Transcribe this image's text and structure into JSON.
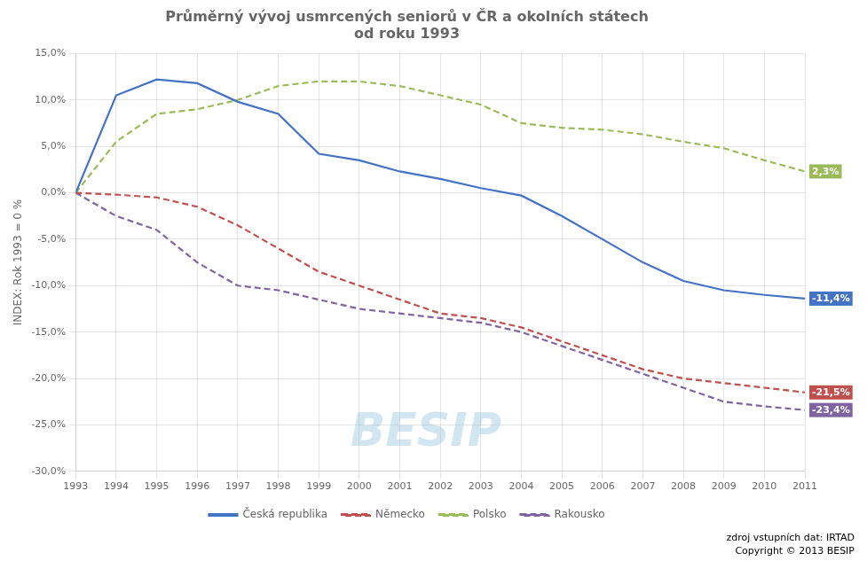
{
  "chart_data": {
    "type": "line",
    "title": "Průměrný vývoj usmrcených seniorů v ČR a okolních státech\nod roku 1993",
    "y_label": "INDEX: Rok 1993 = 0 %",
    "x": [
      1993,
      1994,
      1995,
      1996,
      1997,
      1998,
      1999,
      2000,
      2001,
      2002,
      2003,
      2004,
      2005,
      2006,
      2007,
      2008,
      2009,
      2010,
      2011
    ],
    "series": [
      {
        "name": "Česká republika",
        "color": "#4472C4",
        "line_style": "solid",
        "values": [
          0.0,
          10.5,
          12.2,
          11.8,
          9.8,
          8.5,
          4.2,
          3.5,
          2.3,
          1.5,
          0.5,
          -0.3,
          -2.5,
          -5.0,
          -7.5,
          -9.5,
          -10.5,
          -11.0,
          -11.4
        ]
      },
      {
        "name": "Německo",
        "color": "#C0504D",
        "line_style": "dashed",
        "values": [
          0.0,
          -0.2,
          -0.5,
          -1.5,
          -3.5,
          -6.0,
          -8.5,
          -10.0,
          -11.5,
          -13.0,
          -13.5,
          -14.5,
          -16.0,
          -17.5,
          -19.0,
          -20.0,
          -20.5,
          -21.0,
          -21.5
        ]
      },
      {
        "name": "Polsko",
        "color": "#9BBB59",
        "line_style": "dashed",
        "values": [
          0.0,
          5.5,
          8.5,
          9.0,
          10.0,
          11.5,
          12.0,
          12.0,
          11.5,
          10.5,
          9.5,
          7.5,
          7.0,
          6.8,
          6.3,
          5.5,
          4.8,
          3.5,
          2.3
        ]
      },
      {
        "name": "Rakousko",
        "color": "#8064A2",
        "line_style": "dashed",
        "values": [
          0.0,
          -2.5,
          -4.0,
          -7.5,
          -10.0,
          -10.5,
          -11.5,
          -12.5,
          -13.0,
          -13.5,
          -14.0,
          -15.0,
          -16.5,
          -18.0,
          -19.5,
          -21.0,
          -22.5,
          -23.0,
          -23.4
        ]
      }
    ],
    "xlim": [
      1993,
      2011
    ],
    "xticks": [
      1993,
      1994,
      1995,
      1996,
      1997,
      1998,
      1999,
      2000,
      2001,
      2002,
      2003,
      2004,
      2005,
      2006,
      2007,
      2008,
      2009,
      2010,
      2011
    ],
    "ylim": [
      -30.0,
      15.0
    ],
    "yticks": [
      {
        "value": -30,
        "label": "-30,0%"
      },
      {
        "value": -25,
        "label": "-25,0%"
      },
      {
        "value": -20,
        "label": "-20,0%"
      },
      {
        "value": -15,
        "label": "-15,0%"
      },
      {
        "value": -10,
        "label": "-10,0%"
      },
      {
        "value": -5,
        "label": "-5,0%"
      },
      {
        "value": 0,
        "label": "0,0%"
      },
      {
        "value": 5,
        "label": "5,0%"
      },
      {
        "value": 10,
        "label": "10,0%"
      },
      {
        "value": 15,
        "label": "15,0%"
      }
    ],
    "grid": true,
    "legend": "bottom",
    "annotations": [
      {
        "text": "-11,4%",
        "x": 2011,
        "y": -11.4,
        "color": "#4472C4"
      },
      {
        "text": "-21,5%",
        "x": 2011,
        "y": -21.5,
        "color": "#C0504D"
      },
      {
        "text": "2,3%",
        "x": 2011,
        "y": 2.3,
        "color": "#9BBB59"
      },
      {
        "text": "-23,4%",
        "x": 2011,
        "y": -23.4,
        "color": "#8064A2"
      },
      {
        "text": "BESIP"
      },
      {
        "text": "zdroj vstupních dat: IRTAD"
      },
      {
        "text": "Copyright © 2013 BESIP"
      }
    ]
  }
}
